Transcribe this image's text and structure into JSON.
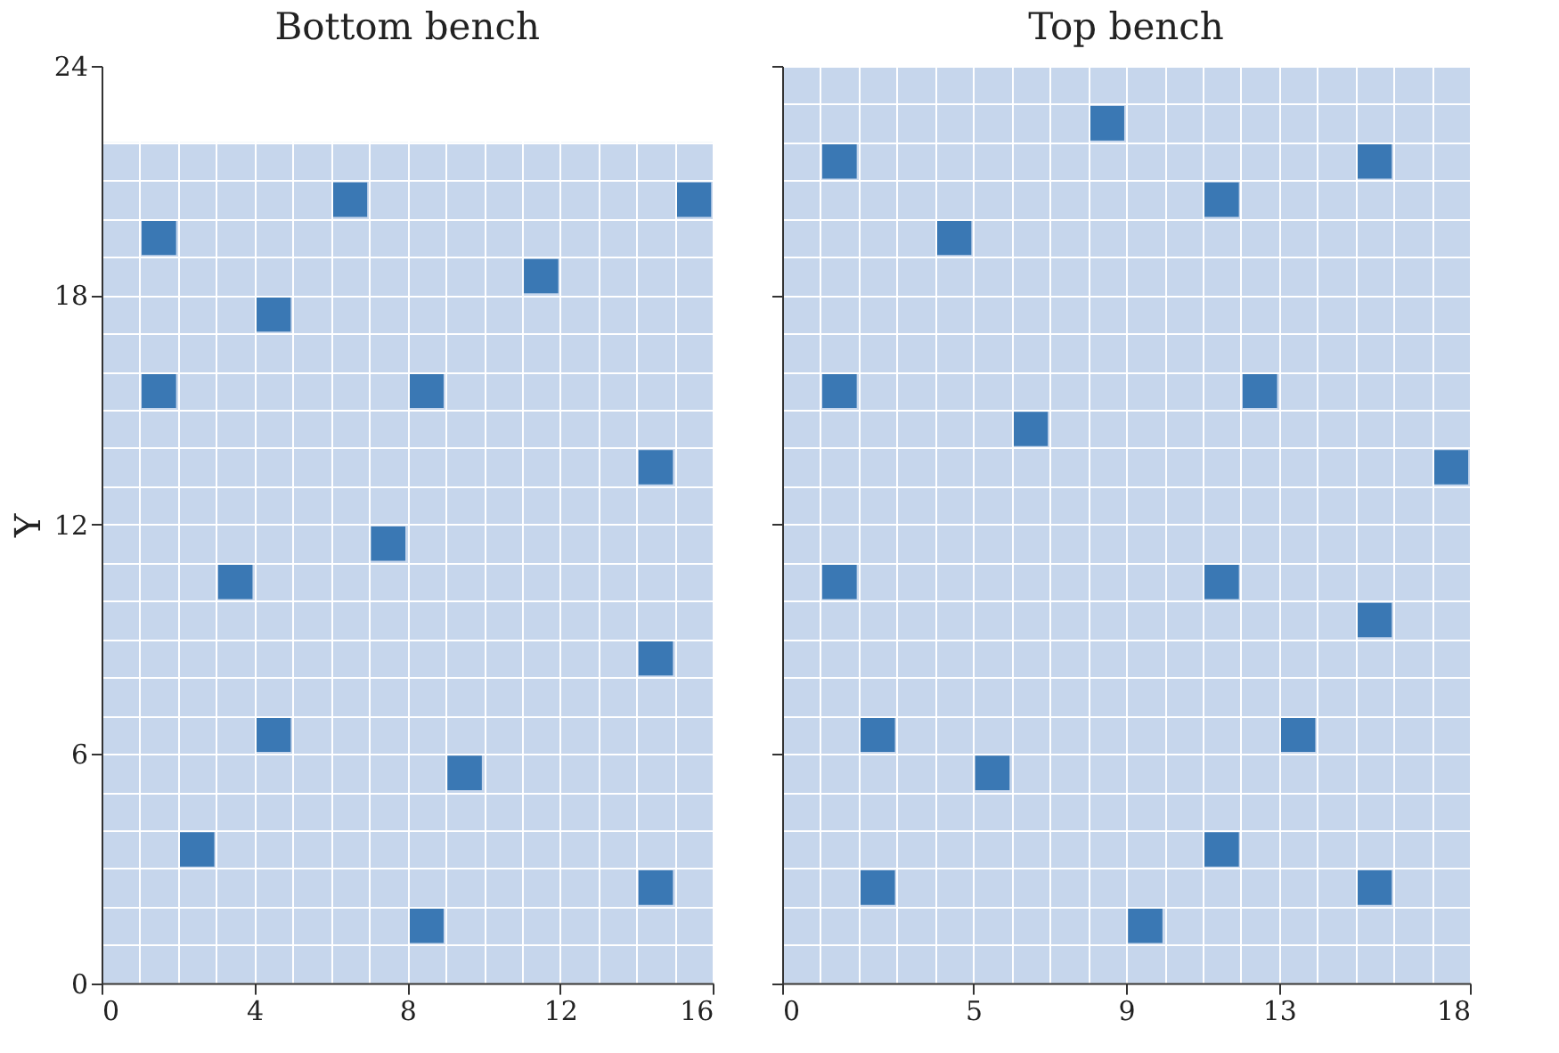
{
  "chart_data": [
    {
      "type": "scatter",
      "title": "Bottom bench",
      "ylabel": "Y",
      "marker": "square",
      "grid": true,
      "xlim": [
        0,
        16
      ],
      "ylim": [
        0,
        24
      ],
      "xticks": [
        0,
        {
          "value": 1,
          "label": null
        },
        {
          "value": 2,
          "label": null
        },
        {
          "value": 3,
          "label": null
        },
        4,
        {
          "value": 5,
          "label": null
        },
        {
          "value": 6,
          "label": null
        },
        {
          "value": 7,
          "label": null
        },
        8,
        {
          "value": 9,
          "label": null
        },
        {
          "value": 10,
          "label": null
        },
        {
          "value": 11,
          "label": null
        },
        12,
        {
          "value": 13,
          "label": null
        },
        {
          "value": 14,
          "label": null
        },
        {
          "value": 15,
          "label": null
        },
        16
      ],
      "yticks": [
        0,
        {
          "value": 1,
          "label": null
        },
        {
          "value": 2,
          "label": null
        },
        {
          "value": 3,
          "label": null
        },
        {
          "value": 4,
          "label": null
        },
        {
          "value": 5,
          "label": null
        },
        6,
        {
          "value": 7,
          "label": null
        },
        {
          "value": 8,
          "label": null
        },
        {
          "value": 9,
          "label": null
        },
        {
          "value": 10,
          "label": null
        },
        {
          "value": 11,
          "label": null
        },
        12,
        {
          "value": 13,
          "label": null
        },
        {
          "value": 14,
          "label": null
        },
        {
          "value": 15,
          "label": null
        },
        {
          "value": 16,
          "label": null
        },
        {
          "value": 17,
          "label": null
        },
        18,
        {
          "value": 19,
          "label": null
        },
        {
          "value": 20,
          "label": null
        },
        {
          "value": 21,
          "label": null
        },
        {
          "value": 22,
          "label": null
        },
        24
      ],
      "bands": [
        {
          "axis": "y",
          "from": 0,
          "to": 22,
          "color": "#c6d6ec"
        }
      ],
      "series": [
        {
          "color": "#3a78b4",
          "x": [
            1.5,
            6.5,
            15.5,
            11.5,
            4.5,
            1.5,
            8.5,
            14.5,
            7.5,
            3.5,
            14.5,
            4.5,
            9.5,
            2.5,
            14.5,
            8.5
          ],
          "values": [
            19.5,
            20.5,
            20.5,
            18.5,
            17.5,
            15.5,
            15.5,
            13.5,
            11.5,
            10.5,
            8.5,
            6.5,
            5.5,
            3.5,
            2.5,
            1.5
          ]
        }
      ]
    },
    {
      "type": "scatter",
      "title": "Top bench",
      "marker": "square",
      "grid": true,
      "tick_labels": "x",
      "xlim": [
        0,
        18
      ],
      "ylim": [
        0,
        24
      ],
      "xticks": [
        0,
        {
          "value": 1,
          "label": null
        },
        {
          "value": 2,
          "label": null
        },
        {
          "value": 3,
          "label": null
        },
        {
          "value": 4,
          "label": null
        },
        5,
        {
          "value": 6,
          "label": null
        },
        {
          "value": 7,
          "label": null
        },
        {
          "value": 8,
          "label": null
        },
        9,
        {
          "value": 10,
          "label": null
        },
        {
          "value": 11,
          "label": null
        },
        {
          "value": 12,
          "label": null
        },
        13,
        {
          "value": 14,
          "label": null
        },
        {
          "value": 15,
          "label": null
        },
        {
          "value": 16,
          "label": null
        },
        {
          "value": 17,
          "label": null
        },
        18
      ],
      "yticks": [
        0,
        {
          "value": 1,
          "label": null
        },
        {
          "value": 2,
          "label": null
        },
        {
          "value": 3,
          "label": null
        },
        {
          "value": 4,
          "label": null
        },
        {
          "value": 5,
          "label": null
        },
        6,
        {
          "value": 7,
          "label": null
        },
        {
          "value": 8,
          "label": null
        },
        {
          "value": 9,
          "label": null
        },
        {
          "value": 10,
          "label": null
        },
        {
          "value": 11,
          "label": null
        },
        12,
        {
          "value": 13,
          "label": null
        },
        {
          "value": 14,
          "label": null
        },
        {
          "value": 15,
          "label": null
        },
        {
          "value": 16,
          "label": null
        },
        {
          "value": 17,
          "label": null
        },
        18,
        {
          "value": 19,
          "label": null
        },
        {
          "value": 20,
          "label": null
        },
        {
          "value": 21,
          "label": null
        },
        {
          "value": 22,
          "label": null
        },
        {
          "value": 23,
          "label": null
        },
        24
      ],
      "bands": [
        {
          "axis": "y",
          "from": 0,
          "to": 24,
          "color": "#c6d6ec"
        }
      ],
      "series": [
        {
          "color": "#3a78b4",
          "x": [
            1.5,
            8.5,
            15.5,
            11.5,
            4.5,
            1.5,
            12.5,
            6.5,
            17.5,
            1.5,
            11.5,
            15.5,
            2.5,
            13.5,
            5.5,
            11.5,
            2.5,
            15.5,
            9.5
          ],
          "values": [
            21.5,
            22.5,
            21.5,
            20.5,
            19.5,
            15.5,
            15.5,
            14.5,
            13.5,
            10.5,
            10.5,
            9.5,
            6.5,
            6.5,
            5.5,
            3.5,
            2.5,
            2.5,
            1.5
          ]
        }
      ]
    }
  ]
}
